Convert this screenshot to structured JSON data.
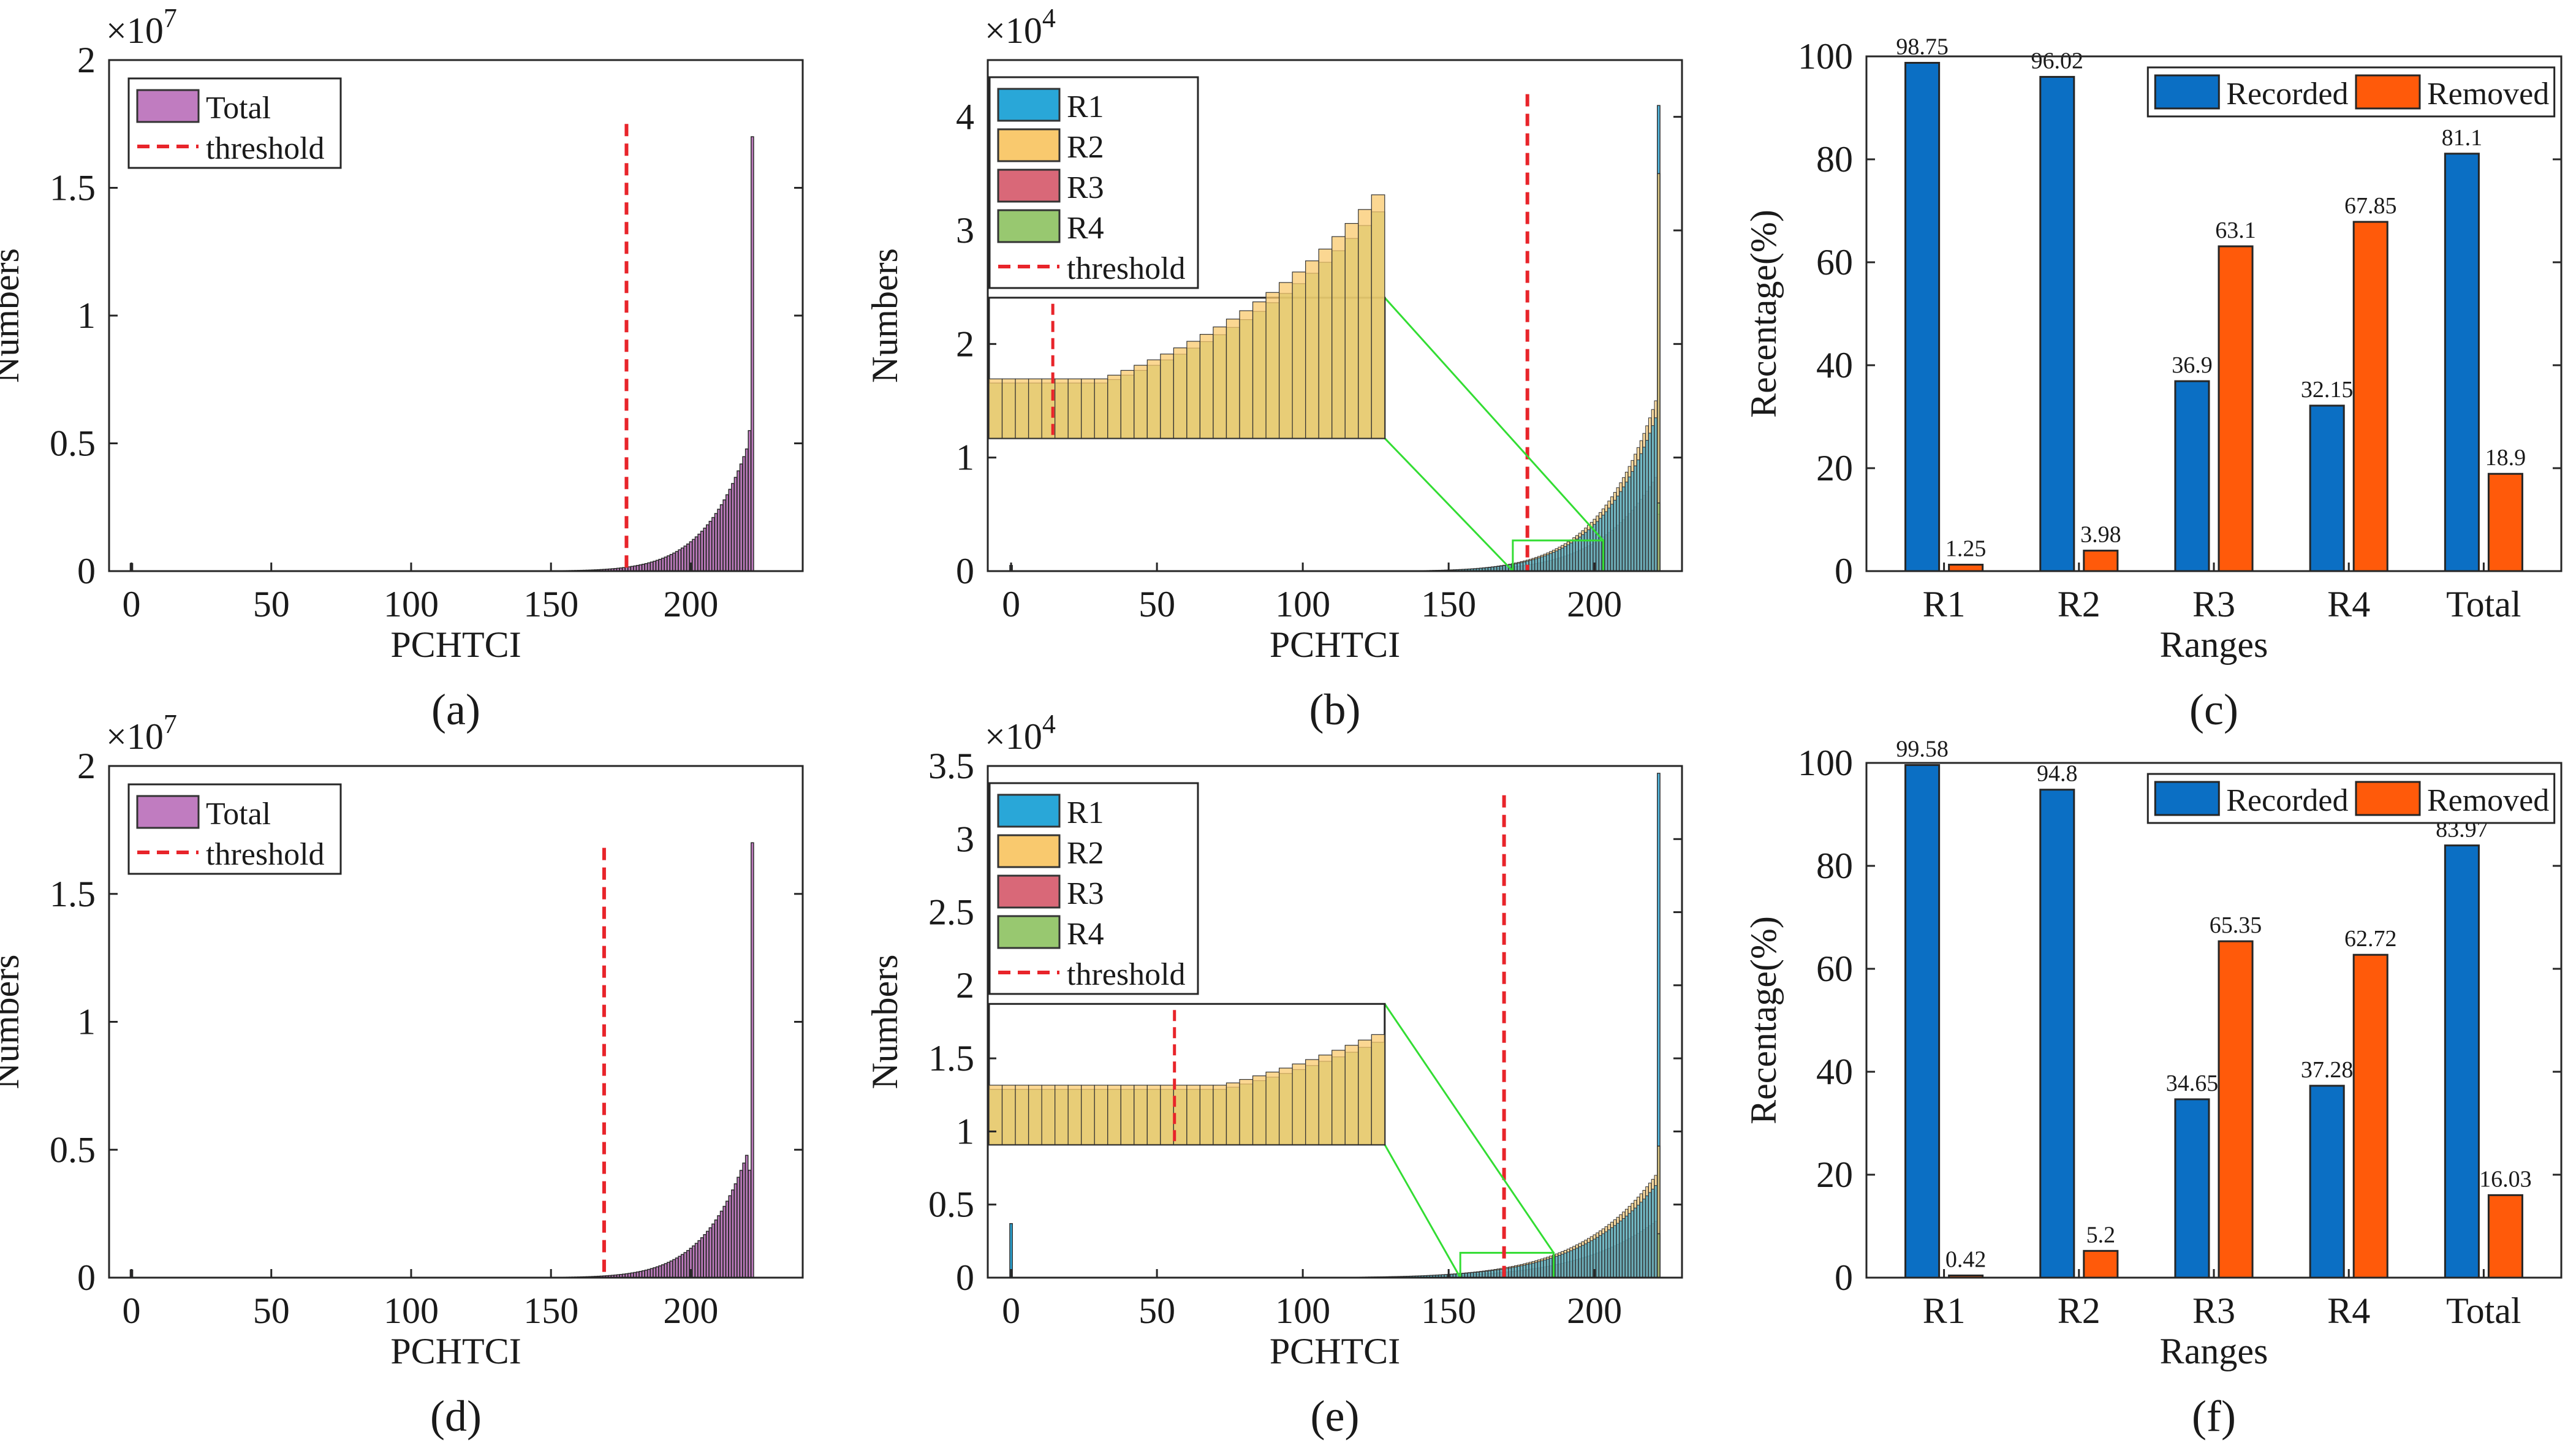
{
  "chart_data": [
    {
      "id": "a",
      "type": "bar",
      "caption": "(a)",
      "xlabel": "PCHTCI",
      "ylabel": "Numbers",
      "exponent": "10^7",
      "xlim": [
        -8,
        240
      ],
      "ylim": [
        0,
        2
      ],
      "xticks": [
        0,
        50,
        100,
        150,
        200
      ],
      "yticks": [
        0,
        0.5,
        1,
        1.5,
        2
      ],
      "yticklabels": [
        "0",
        "0.5",
        "1",
        "1.5",
        "2"
      ],
      "threshold": {
        "x": 177,
        "y_top": 1.75
      },
      "legend": [
        "Total",
        "threshold"
      ],
      "series": [
        {
          "name": "Total",
          "color": "#C07CC0"
        }
      ],
      "curve": {
        "x_start": 105,
        "x_end": 222,
        "y_start": 0.003,
        "y_end": 1.7,
        "spike": 1.7,
        "near_end": 0.55
      },
      "outliers": [
        {
          "x": 0,
          "y": 0.03
        }
      ]
    },
    {
      "id": "b",
      "type": "bar",
      "caption": "(b)",
      "xlabel": "PCHTCI",
      "ylabel": "Numbers",
      "exponent": "10^4",
      "xlim": [
        -8,
        230
      ],
      "ylim": [
        0,
        4.5
      ],
      "xticks": [
        0,
        50,
        100,
        150,
        200
      ],
      "yticks": [
        0,
        1,
        2,
        3,
        4
      ],
      "yticklabels": [
        "0",
        "1",
        "2",
        "3",
        "4"
      ],
      "threshold": {
        "x": 177,
        "y_top": 4.2
      },
      "legend": [
        "R1",
        "R2",
        "R3",
        "R4",
        "threshold"
      ],
      "series": [
        {
          "name": "R1",
          "color": "#29A7D8",
          "spike": 4.1
        },
        {
          "name": "R2",
          "color": "#F9C96E",
          "spike": 3.5
        },
        {
          "name": "R3",
          "color": "#D96878",
          "spike": 0.5
        },
        {
          "name": "R4",
          "color": "#98C870",
          "spike": 0.6
        }
      ],
      "curve": {
        "x_start": 78,
        "x_end": 221,
        "y_start": 0.002,
        "y_end": 1.5
      },
      "outliers": [
        {
          "x": 0,
          "y": 0.05
        }
      ],
      "zoom": {
        "x_range": [
          172,
          203
        ],
        "y_range": [
          0,
          0.27
        ]
      }
    },
    {
      "id": "c",
      "type": "bar",
      "caption": "(c)",
      "xlabel": "Ranges",
      "ylabel": "Recentage(%)",
      "categories": [
        "R1",
        "R2",
        "R3",
        "R4",
        "Total"
      ],
      "ylim": [
        0,
        100
      ],
      "yticks": [
        0,
        20,
        40,
        60,
        80,
        100
      ],
      "legend": [
        "Recorded",
        "Removed"
      ],
      "series": [
        {
          "name": "Recorded",
          "color": "#0B6FC4",
          "values": [
            98.75,
            96.02,
            36.9,
            32.15,
            81.1
          ],
          "labels": [
            "98.75",
            "96.02",
            "36.9",
            "32.15",
            "81.1"
          ]
        },
        {
          "name": "Removed",
          "color": "#FF5A0A",
          "values": [
            1.25,
            3.98,
            63.1,
            67.85,
            18.9
          ],
          "labels": [
            "1.25",
            "3.98",
            "63.1",
            "67.85",
            "18.9"
          ]
        }
      ]
    },
    {
      "id": "d",
      "type": "bar",
      "caption": "(d)",
      "xlabel": "PCHTCI",
      "ylabel": "Numbers",
      "exponent": "10^7",
      "xlim": [
        -8,
        240
      ],
      "ylim": [
        0,
        2
      ],
      "xticks": [
        0,
        50,
        100,
        150,
        200
      ],
      "yticks": [
        0,
        0.5,
        1,
        1.5,
        2
      ],
      "yticklabels": [
        "0",
        "0.5",
        "1",
        "1.5",
        "2"
      ],
      "threshold": {
        "x": 169,
        "y_top": 1.68
      },
      "legend": [
        "Total",
        "threshold"
      ],
      "series": [
        {
          "name": "Total",
          "color": "#C07CC0"
        }
      ],
      "curve": {
        "x_start": 105,
        "x_end": 222,
        "y_start": 0.003,
        "y_end": 1.7,
        "spike": 1.7,
        "near_end": 0.42
      },
      "outliers": [
        {
          "x": 0,
          "y": 0.03
        }
      ]
    },
    {
      "id": "e",
      "type": "bar",
      "caption": "(e)",
      "xlabel": "PCHTCI",
      "ylabel": "Numbers",
      "exponent": "10^4",
      "xlim": [
        -8,
        230
      ],
      "ylim": [
        0,
        3.5
      ],
      "xticks": [
        0,
        50,
        100,
        150,
        200
      ],
      "yticks": [
        0,
        0.5,
        1,
        1.5,
        2,
        2.5,
        3,
        3.5
      ],
      "yticklabels": [
        "0",
        "0.5",
        "1",
        "1.5",
        "2",
        "2.5",
        "3",
        "3.5"
      ],
      "threshold": {
        "x": 169,
        "y_top": 3.3
      },
      "legend": [
        "R1",
        "R2",
        "R3",
        "R4",
        "threshold"
      ],
      "series": [
        {
          "name": "R1",
          "color": "#29A7D8",
          "spike": 3.45
        },
        {
          "name": "R2",
          "color": "#F9C96E",
          "spike": 0.9
        },
        {
          "name": "R3",
          "color": "#D96878",
          "spike": 0.3
        },
        {
          "name": "R4",
          "color": "#98C870",
          "spike": 0.3
        }
      ],
      "curve": {
        "x_start": 30,
        "x_end": 221,
        "y_start": 0.002,
        "y_end": 0.7
      },
      "outliers": [
        {
          "x": 0,
          "y": 0.37
        }
      ],
      "zoom": {
        "x_range": [
          154,
          186
        ],
        "y_range": [
          0,
          0.17
        ]
      }
    },
    {
      "id": "f",
      "type": "bar",
      "caption": "(f)",
      "xlabel": "Ranges",
      "ylabel": "Recentage(%)",
      "categories": [
        "R1",
        "R2",
        "R3",
        "R4",
        "Total"
      ],
      "ylim": [
        0,
        100
      ],
      "yticks": [
        0,
        20,
        40,
        60,
        80,
        100
      ],
      "legend": [
        "Recorded",
        "Removed"
      ],
      "series": [
        {
          "name": "Recorded",
          "color": "#0B6FC4",
          "values": [
            99.58,
            94.8,
            34.65,
            37.28,
            83.97
          ],
          "labels": [
            "99.58",
            "94.8",
            "34.65",
            "37.28",
            "83.97"
          ]
        },
        {
          "name": "Removed",
          "color": "#FF5A0A",
          "values": [
            0.42,
            5.2,
            65.35,
            62.72,
            16.03
          ],
          "labels": [
            "0.42",
            "5.2",
            "65.35",
            "62.72",
            "16.03"
          ]
        }
      ]
    }
  ],
  "colors": {
    "threshold": "#E8242A",
    "zoom_outline": "#33DD33",
    "total_bar": "#C07CC0"
  }
}
